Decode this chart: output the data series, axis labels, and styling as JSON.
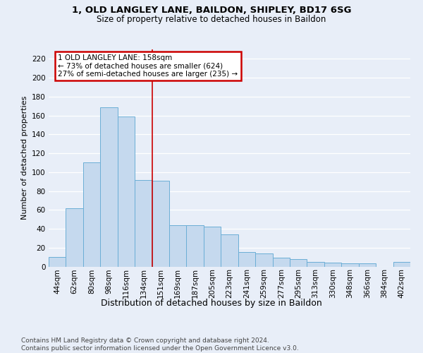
{
  "title1": "1, OLD LANGLEY LANE, BAILDON, SHIPLEY, BD17 6SG",
  "title2": "Size of property relative to detached houses in Baildon",
  "xlabel": "Distribution of detached houses by size in Baildon",
  "ylabel": "Number of detached properties",
  "categories": [
    "44sqm",
    "62sqm",
    "80sqm",
    "98sqm",
    "116sqm",
    "134sqm",
    "151sqm",
    "169sqm",
    "187sqm",
    "205sqm",
    "223sqm",
    "241sqm",
    "259sqm",
    "277sqm",
    "295sqm",
    "313sqm",
    "330sqm",
    "348sqm",
    "366sqm",
    "384sqm",
    "402sqm"
  ],
  "values": [
    10,
    62,
    110,
    169,
    159,
    92,
    91,
    44,
    44,
    42,
    34,
    15,
    14,
    9,
    8,
    5,
    4,
    3,
    3,
    0,
    5
  ],
  "bar_color": "#c5d9ee",
  "bar_edge_color": "#6baed6",
  "vline_after_index": 6,
  "vline_color": "#cc0000",
  "annotation_line1": "1 OLD LANGLEY LANE: 158sqm",
  "annotation_line2": "← 73% of detached houses are smaller (624)",
  "annotation_line3": "27% of semi-detached houses are larger (235) →",
  "annotation_box_facecolor": "#ffffff",
  "annotation_box_edgecolor": "#cc0000",
  "ylim": [
    0,
    230
  ],
  "yticks": [
    0,
    20,
    40,
    60,
    80,
    100,
    120,
    140,
    160,
    180,
    200,
    220
  ],
  "footer_line1": "Contains HM Land Registry data © Crown copyright and database right 2024.",
  "footer_line2": "Contains public sector information licensed under the Open Government Licence v3.0.",
  "bg_color": "#e8eef8",
  "grid_color": "#ffffff",
  "title1_fontsize": 9.5,
  "title2_fontsize": 8.5,
  "ylabel_fontsize": 8,
  "xlabel_fontsize": 9,
  "tick_fontsize": 7.5,
  "footer_fontsize": 6.5
}
